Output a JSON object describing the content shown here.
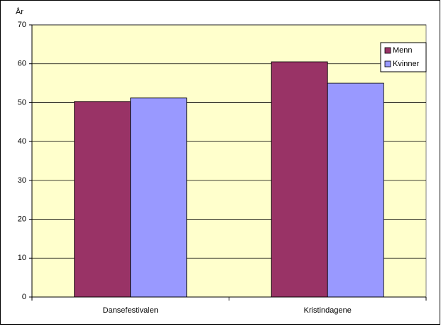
{
  "chart_data": {
    "type": "bar",
    "ylabel": "År",
    "categories": [
      "Dansefestivalen",
      "Kristindagene"
    ],
    "series": [
      {
        "name": "Menn",
        "color": "#993366",
        "values": [
          50.3,
          60.5
        ]
      },
      {
        "name": "Kvinner",
        "color": "#9999ff",
        "values": [
          51.2,
          55.0
        ]
      }
    ],
    "ylim": [
      0,
      70
    ],
    "yticks": [
      0,
      10,
      20,
      30,
      40,
      50,
      60,
      70
    ],
    "grid": true,
    "legend": "right",
    "plot_background": "#ffffcc"
  }
}
